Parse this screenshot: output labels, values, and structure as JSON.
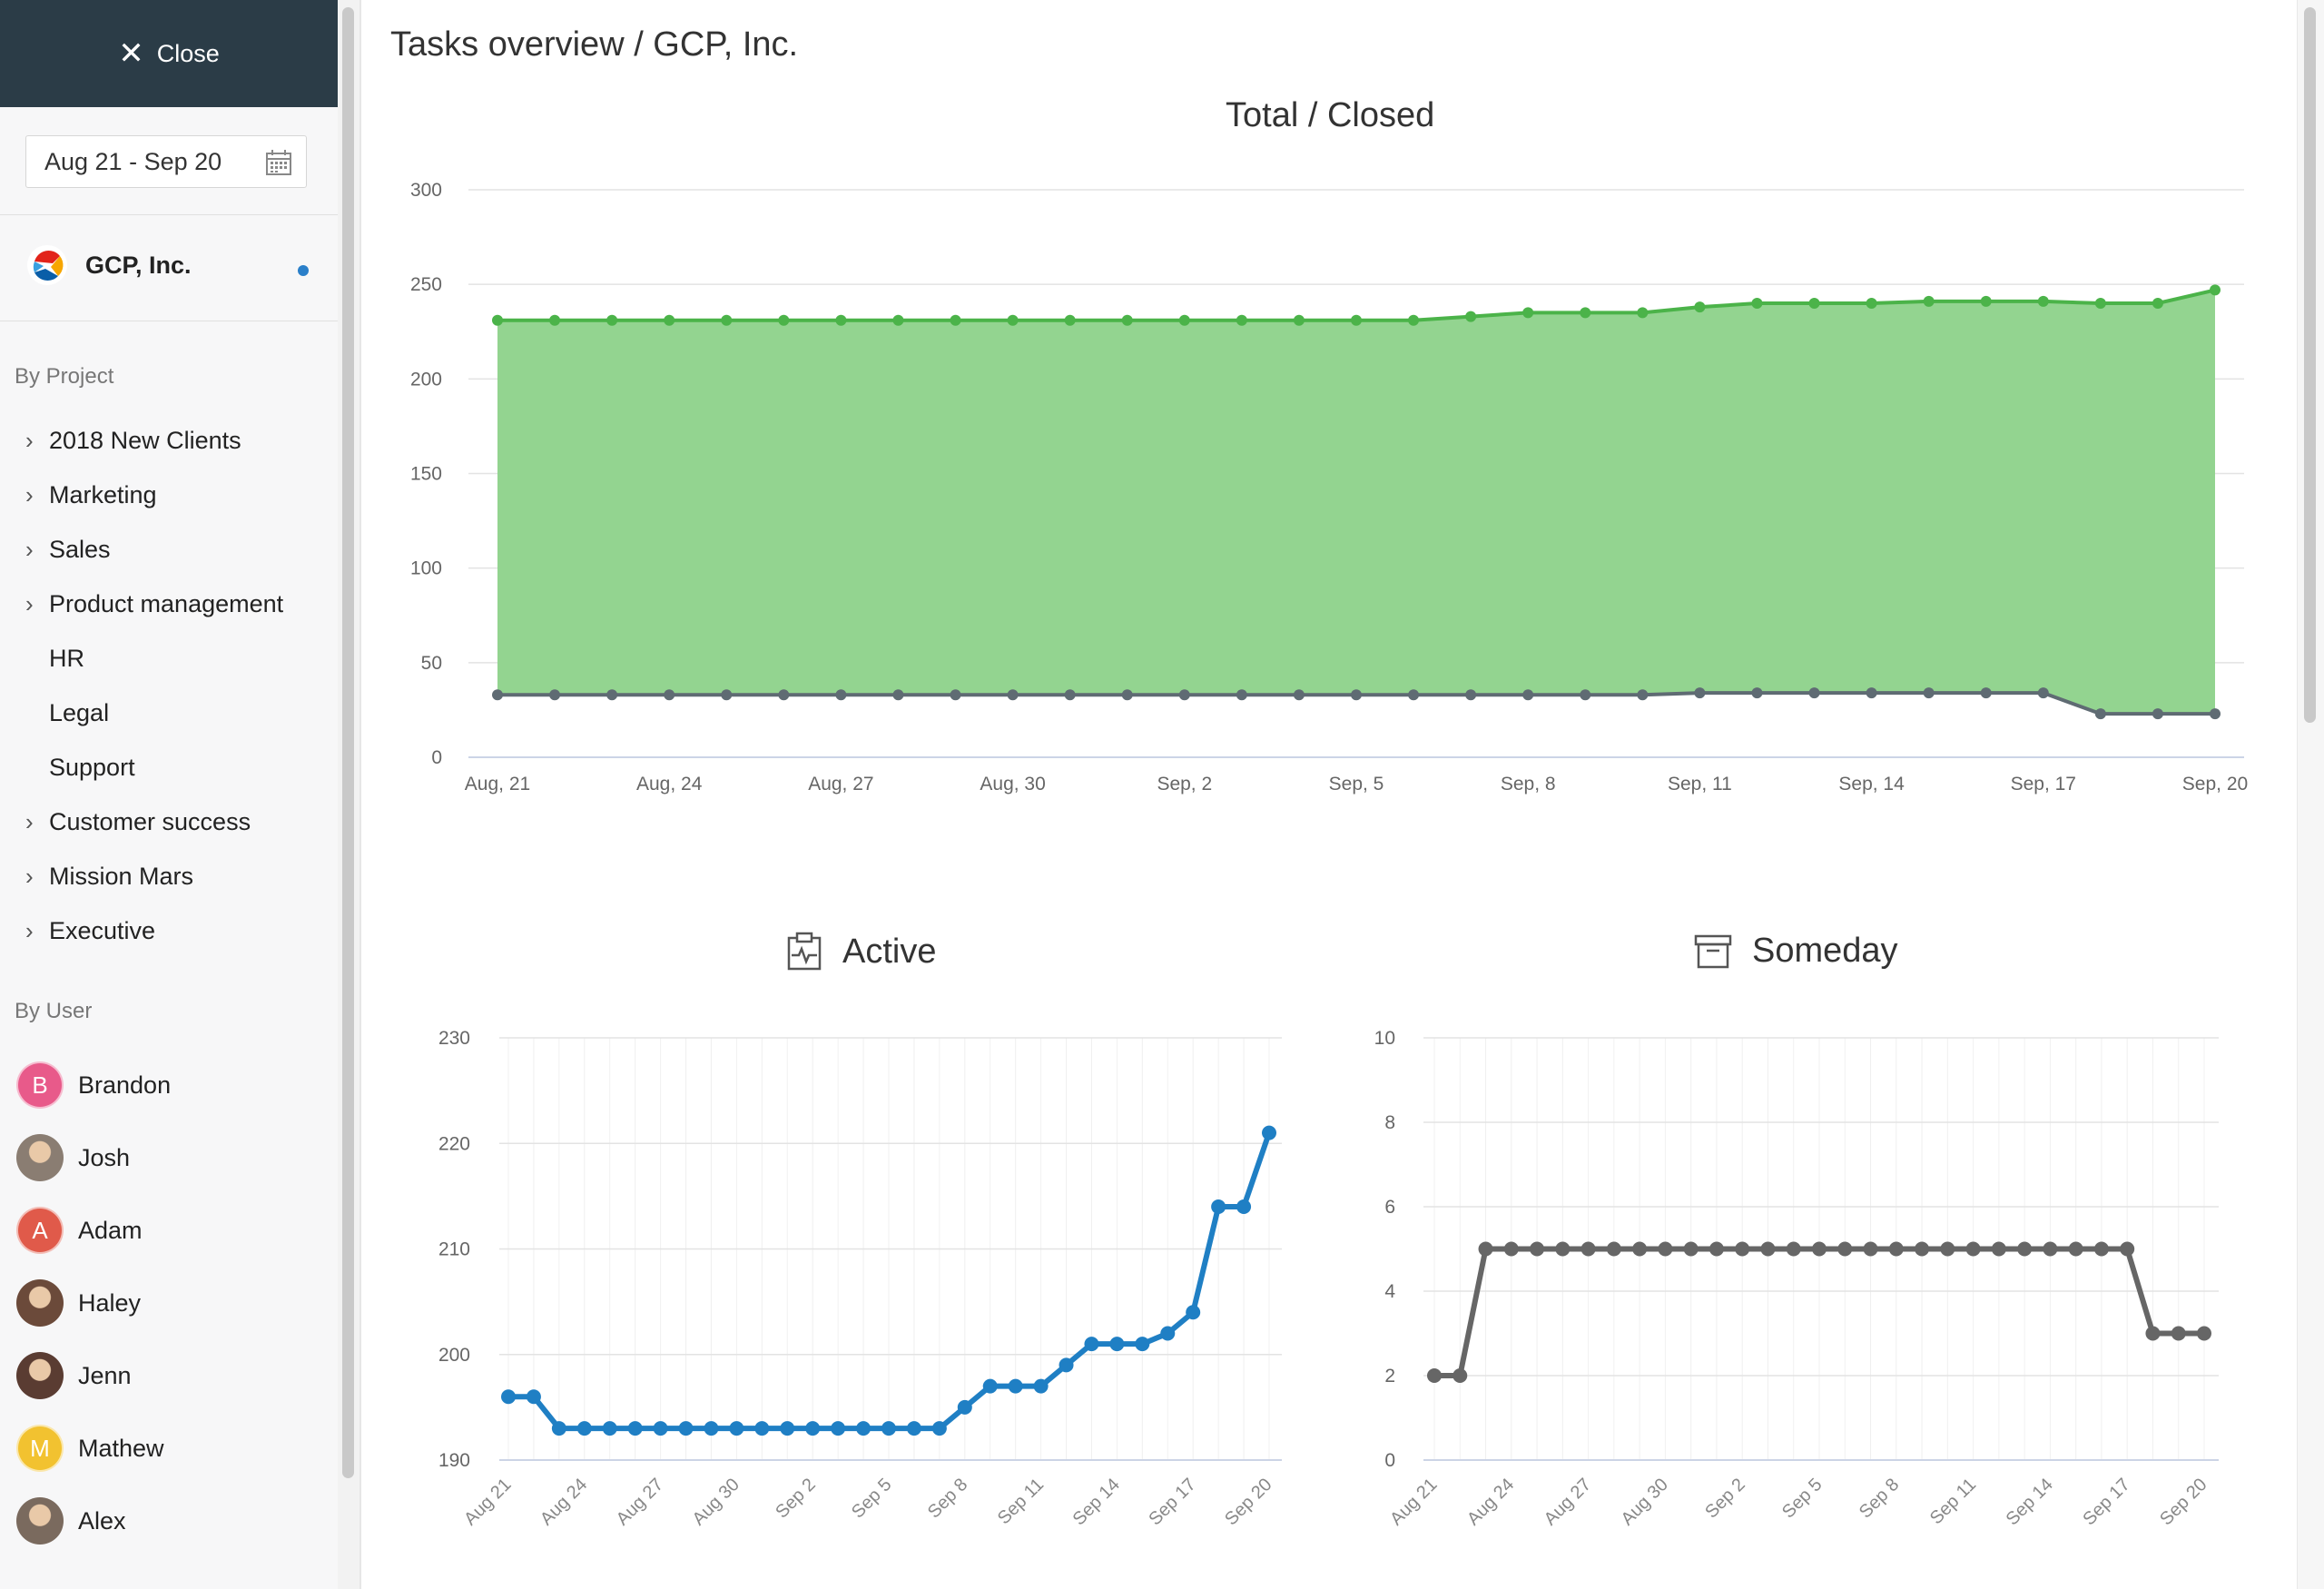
{
  "sidebar": {
    "close_label": "Close",
    "close_icon": "close-icon",
    "date_range": "Aug 21 - Sep 20",
    "calendar_icon": "calendar-icon",
    "org_name": "GCP, Inc.",
    "by_project_title": "By Project",
    "projects": [
      {
        "label": "2018 New Clients",
        "expandable": true
      },
      {
        "label": "Marketing",
        "expandable": true
      },
      {
        "label": "Sales",
        "expandable": true
      },
      {
        "label": "Product management",
        "expandable": true
      },
      {
        "label": "HR",
        "expandable": false
      },
      {
        "label": "Legal",
        "expandable": false
      },
      {
        "label": "Support",
        "expandable": false
      },
      {
        "label": "Customer success",
        "expandable": true
      },
      {
        "label": "Mission Mars",
        "expandable": true
      },
      {
        "label": "Executive",
        "expandable": true
      }
    ],
    "by_user_title": "By User",
    "users": [
      {
        "name": "Brandon",
        "initial": "B",
        "color": "#e85a8a",
        "photo": false
      },
      {
        "name": "Josh",
        "initial": "",
        "color": "#8a7d72",
        "photo": true
      },
      {
        "name": "Adam",
        "initial": "A",
        "color": "#e05a4a",
        "photo": false
      },
      {
        "name": "Haley",
        "initial": "",
        "color": "#6b4a3a",
        "photo": true
      },
      {
        "name": "Jenn",
        "initial": "",
        "color": "#5a3c32",
        "photo": true
      },
      {
        "name": "Mathew",
        "initial": "M",
        "color": "#f2c230",
        "photo": false
      },
      {
        "name": "Alex",
        "initial": "",
        "color": "#7a6a5e",
        "photo": true
      }
    ]
  },
  "page_title": "Tasks overview / GCP, Inc.",
  "colors": {
    "green_line": "#4bb349",
    "green_fill": "#93d490",
    "gray_line": "#5f6b73",
    "blue_line": "#1f7fc4",
    "dark_gray_line": "#666666"
  },
  "chart_data": [
    {
      "type": "area",
      "title": "Total / Closed",
      "categories": [
        "Aug, 21",
        "Aug, 22",
        "Aug, 23",
        "Aug, 24",
        "Aug, 25",
        "Aug, 26",
        "Aug, 27",
        "Aug, 28",
        "Aug, 29",
        "Aug, 30",
        "Aug, 31",
        "Sep, 1",
        "Sep, 2",
        "Sep, 3",
        "Sep, 4",
        "Sep, 5",
        "Sep, 6",
        "Sep, 7",
        "Sep, 8",
        "Sep, 9",
        "Sep, 10",
        "Sep, 11",
        "Sep, 12",
        "Sep, 13",
        "Sep, 14",
        "Sep, 15",
        "Sep, 16",
        "Sep, 17",
        "Sep, 18",
        "Sep, 19",
        "Sep, 20"
      ],
      "tick_labels": [
        "Aug, 21",
        "Aug, 24",
        "Aug, 27",
        "Aug, 30",
        "Sep, 2",
        "Sep, 5",
        "Sep, 8",
        "Sep, 11",
        "Sep, 14",
        "Sep, 17",
        "Sep, 20"
      ],
      "series": [
        {
          "values": [
            231,
            231,
            231,
            231,
            231,
            231,
            231,
            231,
            231,
            231,
            231,
            231,
            231,
            231,
            231,
            231,
            231,
            233,
            235,
            235,
            235,
            238,
            240,
            240,
            240,
            241,
            241,
            241,
            240,
            240,
            247
          ]
        },
        {
          "values": [
            33,
            33,
            33,
            33,
            33,
            33,
            33,
            33,
            33,
            33,
            33,
            33,
            33,
            33,
            33,
            33,
            33,
            33,
            33,
            33,
            33,
            34,
            34,
            34,
            34,
            34,
            34,
            34,
            23,
            23,
            23
          ]
        }
      ],
      "ylim": [
        0,
        300
      ],
      "yticks": [
        0,
        50,
        100,
        150,
        200,
        250,
        300
      ],
      "grid": "horizontal"
    },
    {
      "type": "line",
      "title": "Active",
      "icon": "clipboard-pulse-icon",
      "categories": [
        "Aug 21",
        "Aug 22",
        "Aug 23",
        "Aug 24",
        "Aug 25",
        "Aug 26",
        "Aug 27",
        "Aug 28",
        "Aug 29",
        "Aug 30",
        "Aug 31",
        "Sep 1",
        "Sep 2",
        "Sep 3",
        "Sep 4",
        "Sep 5",
        "Sep 6",
        "Sep 7",
        "Sep 8",
        "Sep 9",
        "Sep 10",
        "Sep 11",
        "Sep 12",
        "Sep 13",
        "Sep 14",
        "Sep 15",
        "Sep 16",
        "Sep 17",
        "Sep 18",
        "Sep 19",
        "Sep 20"
      ],
      "tick_labels": [
        "Aug 21",
        "Aug 24",
        "Aug 27",
        "Aug 30",
        "Sep 2",
        "Sep 5",
        "Sep 8",
        "Sep 11",
        "Sep 14",
        "Sep 17",
        "Sep 20"
      ],
      "series": [
        {
          "values": [
            196,
            196,
            193,
            193,
            193,
            193,
            193,
            193,
            193,
            193,
            193,
            193,
            193,
            193,
            193,
            193,
            193,
            193,
            195,
            197,
            197,
            197,
            199,
            201,
            201,
            201,
            202,
            204,
            214,
            214,
            221
          ]
        }
      ],
      "ylim": [
        190,
        230
      ],
      "yticks": [
        190,
        200,
        210,
        220,
        230
      ],
      "grid": "both"
    },
    {
      "type": "line",
      "title": "Someday",
      "icon": "archive-box-icon",
      "categories": [
        "Aug 21",
        "Aug 22",
        "Aug 23",
        "Aug 24",
        "Aug 25",
        "Aug 26",
        "Aug 27",
        "Aug 28",
        "Aug 29",
        "Aug 30",
        "Aug 31",
        "Sep 1",
        "Sep 2",
        "Sep 3",
        "Sep 4",
        "Sep 5",
        "Sep 6",
        "Sep 7",
        "Sep 8",
        "Sep 9",
        "Sep 10",
        "Sep 11",
        "Sep 12",
        "Sep 13",
        "Sep 14",
        "Sep 15",
        "Sep 16",
        "Sep 17",
        "Sep 18",
        "Sep 19",
        "Sep 20"
      ],
      "tick_labels": [
        "Aug 21",
        "Aug 24",
        "Aug 27",
        "Aug 30",
        "Sep 2",
        "Sep 5",
        "Sep 8",
        "Sep 11",
        "Sep 14",
        "Sep 17",
        "Sep 20"
      ],
      "series": [
        {
          "values": [
            2,
            2,
            5,
            5,
            5,
            5,
            5,
            5,
            5,
            5,
            5,
            5,
            5,
            5,
            5,
            5,
            5,
            5,
            5,
            5,
            5,
            5,
            5,
            5,
            5,
            5,
            5,
            5,
            3,
            3,
            3
          ]
        }
      ],
      "ylim": [
        0,
        10
      ],
      "yticks": [
        0,
        2,
        4,
        6,
        8,
        10
      ],
      "grid": "both"
    }
  ]
}
